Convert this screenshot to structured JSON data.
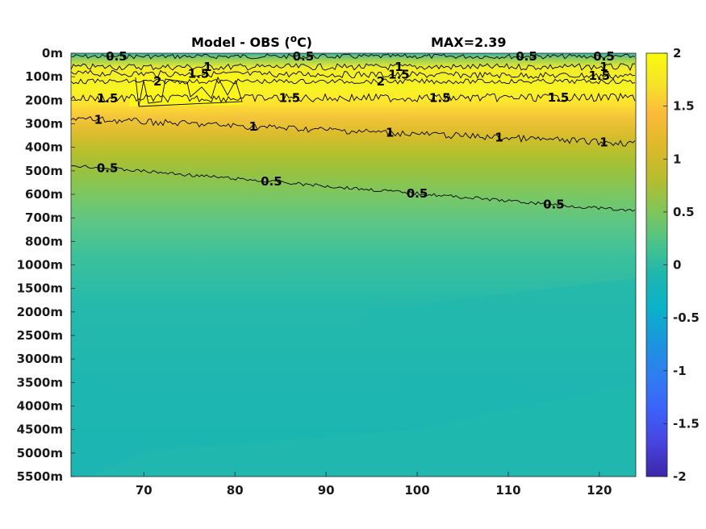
{
  "chart_data": {
    "type": "heatmap",
    "title": "Model - OBS (",
    "title_unit_sup": "o",
    "title_unit_tail": "C)",
    "max_label": "MAX=2.39",
    "xlabel": "",
    "ylabel": "",
    "x_ticks": [
      70,
      80,
      90,
      100,
      110,
      120
    ],
    "xlim": [
      62,
      124
    ],
    "y_tick_labels": [
      "0m",
      "100m",
      "200m",
      "300m",
      "400m",
      "500m",
      "600m",
      "700m",
      "800m",
      "1000m",
      "1500m",
      "2000m",
      "2500m",
      "3000m",
      "3500m",
      "4000m",
      "4500m",
      "5000m",
      "5500m"
    ],
    "colorbar": {
      "ticks": [
        "2",
        "1.5",
        "1",
        "0.5",
        "0",
        "-0.5",
        "-1",
        "-1.5",
        "-2"
      ],
      "range": [
        -2,
        2
      ],
      "colormap": "parula"
    },
    "field_profile": [
      {
        "depth": "0m",
        "value": 0.2
      },
      {
        "depth": "100m",
        "value": 1.9
      },
      {
        "depth": "200m",
        "value": 1.7
      },
      {
        "depth": "300m",
        "value": 1.2
      },
      {
        "depth": "400m",
        "value": 0.8
      },
      {
        "depth": "500m",
        "value": 0.6
      },
      {
        "depth": "600m",
        "value": 0.5
      },
      {
        "depth": "700m",
        "value": 0.4
      },
      {
        "depth": "800m",
        "value": 0.35
      },
      {
        "depth": "1000m",
        "value": 0.3
      },
      {
        "depth": "1500m",
        "value": 0.25
      },
      {
        "depth": "2000m",
        "value": 0.2
      },
      {
        "depth": "2500m",
        "value": 0.15
      },
      {
        "depth": "5500m",
        "value": 0.1
      }
    ],
    "contours": [
      {
        "level": "0.5",
        "labels_at_x": [
          67,
          87.5,
          112,
          120.5
        ]
      },
      {
        "level": "1",
        "labels_at_x": [
          77,
          98,
          120.5
        ]
      },
      {
        "level": "1.5",
        "labels_at_x": [
          76,
          98,
          120
        ]
      },
      {
        "level": "2",
        "labels_at_x": [
          71.5,
          96
        ]
      },
      {
        "level": "1.5",
        "labels_at_x": [
          66,
          86,
          102.5,
          115.5
        ]
      },
      {
        "level": "1",
        "labels_at_x": [
          65,
          82,
          97,
          109,
          120.5
        ]
      },
      {
        "level": "0.5",
        "labels_at_x": [
          66,
          84,
          100,
          115
        ]
      }
    ]
  }
}
